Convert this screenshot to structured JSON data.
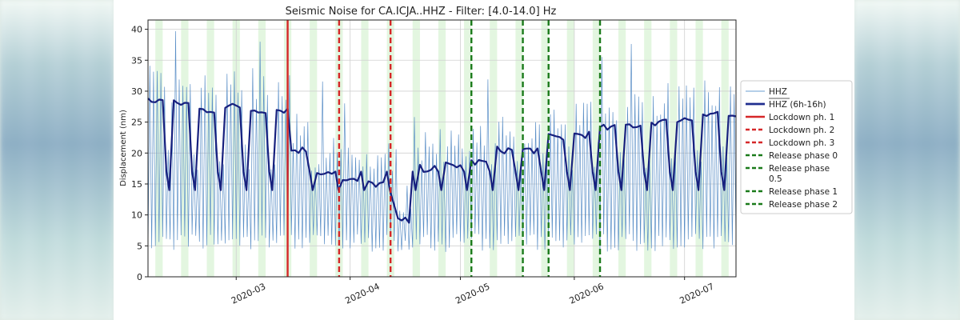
{
  "chart_data": {
    "type": "line",
    "title": "Seismic Noise for CA.ICJA..HHZ - Filter: [4.0-14.0] Hz",
    "xlabel": "",
    "ylabel": "Displacement (nm)",
    "ylim": [
      0,
      41.5
    ],
    "xlim": [
      "2020-02-06",
      "2020-07-15"
    ],
    "yticks": [
      0,
      5,
      10,
      15,
      20,
      25,
      30,
      35,
      40
    ],
    "xticks": [
      {
        "date": "2020-03-01",
        "label": "2020-03"
      },
      {
        "date": "2020-04-01",
        "label": "2020-04"
      },
      {
        "date": "2020-05-01",
        "label": "2020-05"
      },
      {
        "date": "2020-06-01",
        "label": "2020-06"
      },
      {
        "date": "2020-07-01",
        "label": "2020-07"
      }
    ],
    "grid": true,
    "weekend_shading": "light green, one block per week",
    "legend_position": "right, outside plot",
    "weekly_mean_6h_16h": [
      {
        "start": "2020-02-06",
        "end": "2020-02-10",
        "level": 28.5
      },
      {
        "start": "2020-02-13",
        "end": "2020-02-17",
        "level": 28.0
      },
      {
        "start": "2020-02-20",
        "end": "2020-02-24",
        "level": 27.0
      },
      {
        "start": "2020-02-27",
        "end": "2020-03-02",
        "level": 27.5
      },
      {
        "start": "2020-03-05",
        "end": "2020-03-09",
        "level": 27.0
      },
      {
        "start": "2020-03-12",
        "end": "2020-03-15",
        "level": 27.0
      },
      {
        "start": "2020-03-16",
        "end": "2020-03-20",
        "level": 20.5
      },
      {
        "start": "2020-03-23",
        "end": "2020-03-27",
        "level": 17.0
      },
      {
        "start": "2020-03-30",
        "end": "2020-04-03",
        "level": 15.5
      },
      {
        "start": "2020-04-06",
        "end": "2020-04-10",
        "level": 15.0
      },
      {
        "start": "2020-04-14",
        "end": "2020-04-17",
        "level": 9.0
      },
      {
        "start": "2020-04-20",
        "end": "2020-04-24",
        "level": 17.5
      },
      {
        "start": "2020-04-27",
        "end": "2020-05-01",
        "level": 18.0
      },
      {
        "start": "2020-05-04",
        "end": "2020-05-08",
        "level": 18.5
      },
      {
        "start": "2020-05-11",
        "end": "2020-05-15",
        "level": 20.5
      },
      {
        "start": "2020-05-18",
        "end": "2020-05-22",
        "level": 20.5
      },
      {
        "start": "2020-05-25",
        "end": "2020-05-29",
        "level": 22.5
      },
      {
        "start": "2020-06-01",
        "end": "2020-06-05",
        "level": 23.0
      },
      {
        "start": "2020-06-08",
        "end": "2020-06-12",
        "level": 24.0
      },
      {
        "start": "2020-06-15",
        "end": "2020-06-19",
        "level": 24.5
      },
      {
        "start": "2020-06-22",
        "end": "2020-06-26",
        "level": 25.0
      },
      {
        "start": "2020-06-29",
        "end": "2020-07-03",
        "level": 25.5
      },
      {
        "start": "2020-07-06",
        "end": "2020-07-10",
        "level": 26.5
      },
      {
        "start": "2020-07-13",
        "end": "2020-07-15",
        "level": 26.0
      }
    ],
    "weekly_mean_low_level": 14,
    "hhz_daily_range_typical": [
      5,
      30
    ],
    "vertical_lines": [
      {
        "date": "2020-03-15",
        "label": "Lockdown ph. 1",
        "color": "#d62728",
        "style": "solid"
      },
      {
        "date": "2020-03-29",
        "label": "Lockdown ph. 2",
        "color": "#d62728",
        "style": "dashed"
      },
      {
        "date": "2020-04-12",
        "label": "Lockdown ph. 3",
        "color": "#d62728",
        "style": "dashed"
      },
      {
        "date": "2020-05-04",
        "label": "Release phase 0",
        "color": "#1a7a1a",
        "style": "dashed"
      },
      {
        "date": "2020-05-18",
        "label": "Release phase 0.5",
        "color": "#1a7a1a",
        "style": "dashed"
      },
      {
        "date": "2020-05-25",
        "label": "Release phase 1",
        "color": "#1a7a1a",
        "style": "dashed"
      },
      {
        "date": "2020-06-08",
        "label": "Release phase 2",
        "color": "#1a7a1a",
        "style": "dashed"
      }
    ],
    "legend": [
      {
        "label": "HHZ",
        "color": "#6b9fd1",
        "style": "thin"
      },
      {
        "label": "HHZ (6h-16h)",
        "color": "#1f2d8f",
        "style": "thick"
      },
      {
        "label": "Lockdown ph. 1",
        "color": "#d62728",
        "style": "solid"
      },
      {
        "label": "Lockdown ph. 2",
        "color": "#d62728",
        "style": "dashed"
      },
      {
        "label": "Lockdown ph. 3",
        "color": "#d62728",
        "style": "dashed"
      },
      {
        "label": "Release phase 0",
        "color": "#1a7a1a",
        "style": "dashed"
      },
      {
        "label": "Release phase 0.5",
        "color": "#1a7a1a",
        "style": "dashed"
      },
      {
        "label": "Release phase 1",
        "color": "#1a7a1a",
        "style": "dashed"
      },
      {
        "label": "Release phase 2",
        "color": "#1a7a1a",
        "style": "dashed"
      }
    ],
    "colors": {
      "hhz": "#5b8fc7",
      "mean": "#17207e",
      "weekend": "#e3f6e0",
      "grid": "#d0d0d0"
    }
  }
}
